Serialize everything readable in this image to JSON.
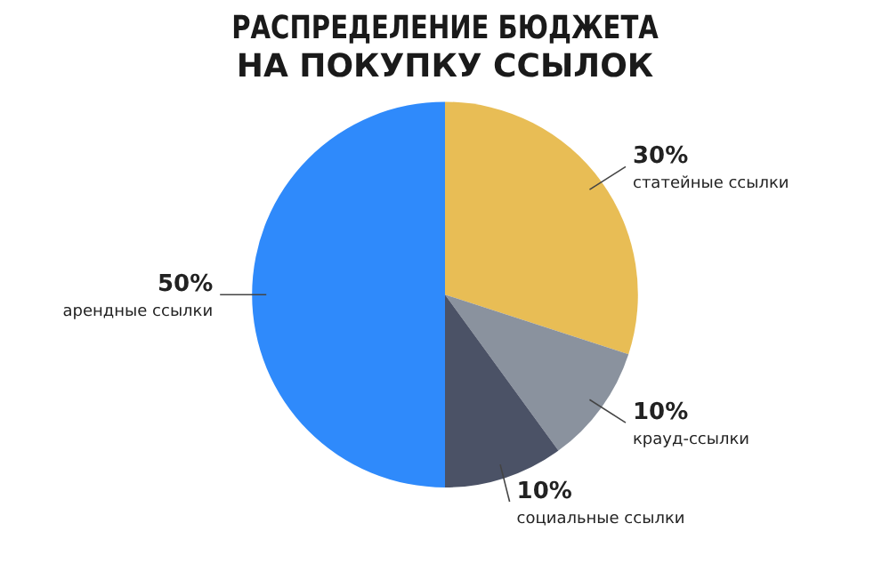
{
  "chart_data": {
    "type": "pie",
    "title": "РАСПРЕДЕЛЕНИЕ БЮДЖЕТА\nНА ПОКУПКУ ССЫЛОК",
    "categories": [
      "статейные ссылки",
      "крауд-ссылки",
      "социальные ссылки",
      "арендные ссылки"
    ],
    "values": [
      30,
      10,
      10,
      50
    ],
    "colors": [
      "#e8bd55",
      "#8a929e",
      "#4b5266",
      "#2f8afb"
    ],
    "value_labels": [
      "30%",
      "10%",
      "10%",
      "50%"
    ],
    "legend": false
  }
}
